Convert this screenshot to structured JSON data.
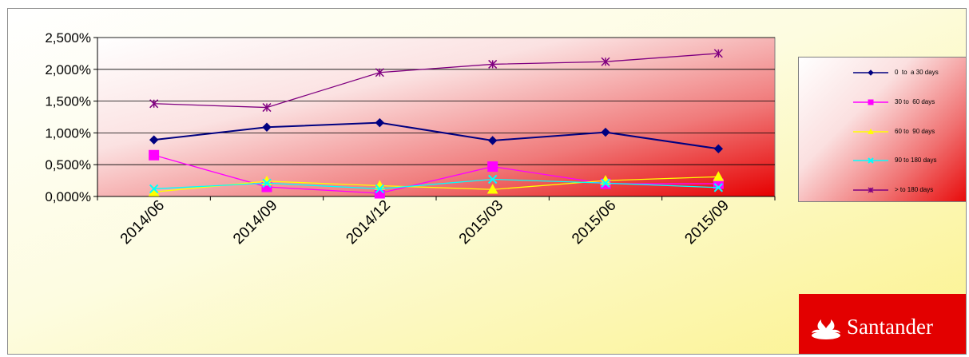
{
  "chart_data": {
    "type": "line",
    "title": "",
    "xlabel": "",
    "ylabel": "",
    "categories": [
      "2014/06",
      "2014/09",
      "2014/12",
      "2015/03",
      "2015/06",
      "2015/09"
    ],
    "ylim": [
      0,
      2.5
    ],
    "yticks": [
      0,
      0.5,
      1.0,
      1.5,
      2.0,
      2.5
    ],
    "ytick_labels": [
      "0,000%",
      "0,500%",
      "1,000%",
      "1,500%",
      "2,000%",
      "2,500%"
    ],
    "grid": "horizontal",
    "legend_position": "right",
    "series": [
      {
        "name": "0  to  a 30 days",
        "color": "#000080",
        "marker": "diamond",
        "values": [
          0.89,
          1.09,
          1.16,
          0.88,
          1.01,
          0.75
        ]
      },
      {
        "name": "30 to  60 days",
        "color": "#ff00ff",
        "marker": "square",
        "values": [
          0.65,
          0.15,
          0.05,
          0.47,
          0.2,
          0.2
        ]
      },
      {
        "name": "60 to  90 days",
        "color": "#ffff00",
        "marker": "triangle",
        "values": [
          0.07,
          0.24,
          0.17,
          0.11,
          0.25,
          0.31
        ]
      },
      {
        "name": "90 to 180 days",
        "color": "#00ffff",
        "marker": "x",
        "values": [
          0.12,
          0.21,
          0.12,
          0.27,
          0.21,
          0.14
        ]
      },
      {
        "name": "> to 180 days",
        "color": "#800080",
        "marker": "star",
        "values": [
          1.46,
          1.4,
          1.95,
          2.08,
          2.12,
          2.25
        ]
      }
    ]
  },
  "logo": {
    "text": "Santander",
    "color": "#e30000"
  }
}
